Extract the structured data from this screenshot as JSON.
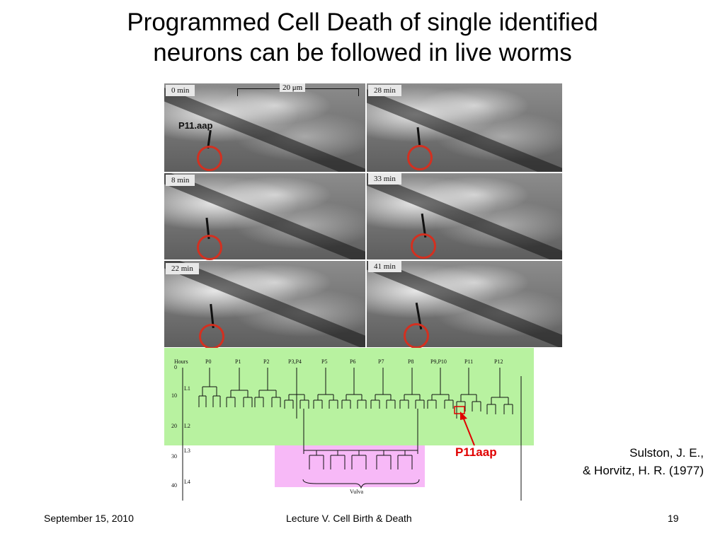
{
  "slide": {
    "title_line1": "Programmed Cell Death of single identified",
    "title_line2": "neurons can be followed in live worms"
  },
  "micrographs": {
    "scale_bar": "20 μm",
    "cell_label": "P11.aap",
    "panels": [
      {
        "time": "0 min"
      },
      {
        "time": "28 min"
      },
      {
        "time": "8 min"
      },
      {
        "time": "33 min"
      },
      {
        "time": "22 min"
      },
      {
        "time": "41 min"
      }
    ]
  },
  "lineage": {
    "hours_label": "Hours",
    "cells": [
      "P0",
      "P1",
      "P2",
      "P3,P4",
      "P5",
      "P6",
      "P7",
      "P8",
      "P9,P10",
      "P11",
      "P12"
    ],
    "hour_ticks": [
      "0",
      "10",
      "20",
      "30",
      "40"
    ],
    "stages": [
      "L1",
      "L2",
      "L3",
      "L4"
    ],
    "vulva_label": "Vulva"
  },
  "annotation": {
    "label": "P11aap",
    "color": "#e00000"
  },
  "citation": {
    "line1": "Sulston, J. E.,",
    "line2": "& Horvitz, H. R. (1977)"
  },
  "footer": {
    "date": "September 15, 2010",
    "lecture": "Lecture V. Cell Birth & Death",
    "page": "19"
  },
  "colors": {
    "highlight_green": "#b8f2a0",
    "highlight_pink": "#f7b9f7",
    "circle_red": "#d33020"
  }
}
